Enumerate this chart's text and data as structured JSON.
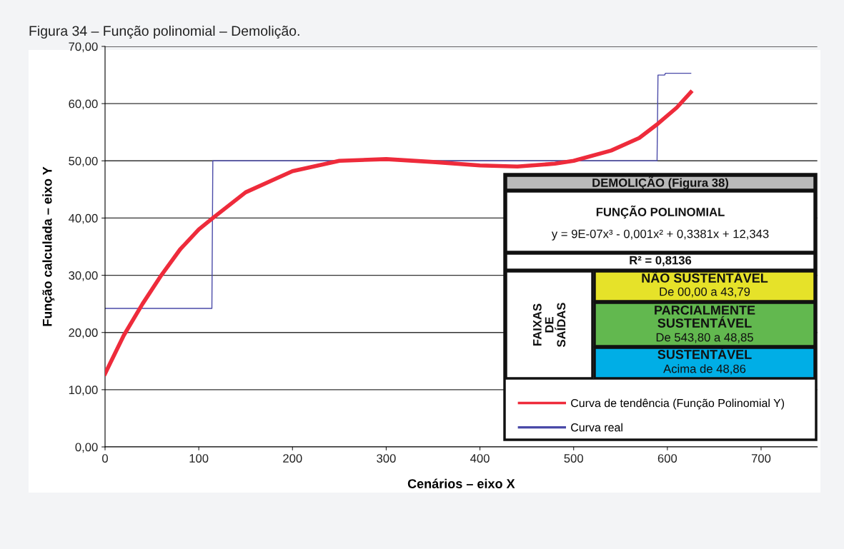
{
  "chart_data": {
    "type": "line",
    "title": "Figura 34 – Função polinomial – Demolição.",
    "xlabel": "Cenários – eixo X",
    "ylabel": "Função calculada – eixo Y",
    "xlim": [
      0,
      760
    ],
    "xticks": [
      0,
      100,
      200,
      300,
      400,
      500,
      600,
      700
    ],
    "ylim": [
      0,
      70
    ],
    "yticks": [
      {
        "value": 0,
        "label": "0,00"
      },
      {
        "value": 10,
        "label": "10,00"
      },
      {
        "value": 20,
        "label": "20,00"
      },
      {
        "value": 30,
        "label": "30,00"
      },
      {
        "value": 40,
        "label": "40,00"
      },
      {
        "value": 50,
        "label": "50,00"
      },
      {
        "value": 60,
        "label": "60,00"
      },
      {
        "value": 70,
        "label": "70,00"
      }
    ],
    "grid": "y",
    "legend": "bottom right",
    "marker": "none",
    "series": [
      {
        "name": "Curva real",
        "color": "#4a4aa8",
        "x": [
          0,
          114,
          115,
          589,
          590,
          597,
          598,
          625
        ],
        "values": [
          24.2,
          24.2,
          50,
          50,
          65,
          65,
          65.3,
          65.3
        ]
      },
      {
        "name": "Curva de tendência (Função Polinomial Y)",
        "color": "#ee2b3b",
        "x": [
          0,
          20,
          40,
          60,
          80,
          100,
          115,
          150,
          200,
          250,
          300,
          350,
          400,
          440,
          480,
          500,
          540,
          570,
          590,
          610,
          625
        ],
        "values": [
          12.8,
          19.5,
          25,
          30,
          34.5,
          38,
          40,
          44.5,
          48.2,
          50,
          50.3,
          49.8,
          49.2,
          49,
          49.5,
          50,
          51.8,
          54,
          56.5,
          59.3,
          62
        ]
      }
    ],
    "annotations": [
      "DEMOLIÇÃO (Figura 38)",
      "FUNÇÃO POLINOMIAL",
      "y = 9E-07x³ - 0,001x² + 0,3381x + 12,343",
      "R² = 0,8136",
      "FAIXAS\nDE\nSAÍDAS",
      "NÃO SUSTENTÁVEL",
      "De 00,00 a 43,79",
      "PARCIALMENTE\nSUSTENTÁVEL",
      "De 543,80 a 48,85",
      "SUSTENTÁVEL",
      "Acima de 48,86"
    ]
  }
}
